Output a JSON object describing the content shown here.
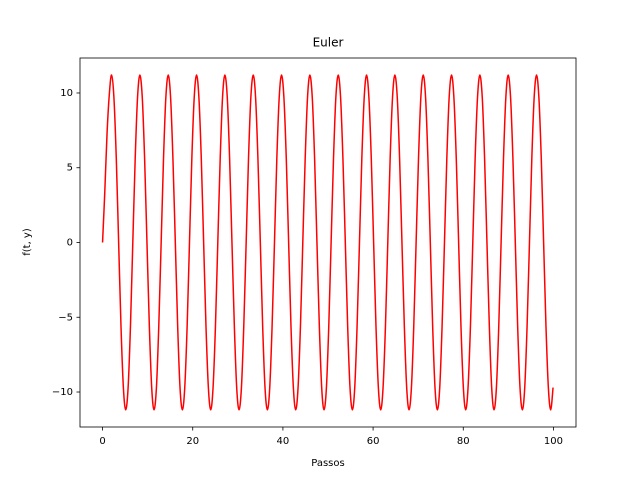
{
  "chart_data": {
    "type": "line",
    "title": "Euler",
    "x_label": "Passos",
    "y_label": "f(t, y)",
    "x": [
      0,
      0.5,
      1.0,
      1.5,
      2,
      2.52,
      3.05,
      3.57,
      4.09,
      4.62,
      5.14,
      5.67,
      6.19,
      6.71,
      7.24,
      7.76,
      8.28,
      8.81,
      9.33,
      9.85,
      10.38,
      10.9,
      11.42,
      11.95,
      12.47,
      13.0,
      13.52,
      14.04,
      14.57,
      15.09,
      15.61,
      16.14,
      16.66,
      17.18,
      17.71,
      18.23,
      18.76,
      19.28,
      19.8,
      20.33,
      20.85,
      21.37,
      21.9,
      22.42,
      22.94,
      23.47,
      23.99,
      24.51,
      25.04,
      25.56,
      26.09,
      26.61,
      27.13,
      27.66,
      28.18,
      28.7,
      29.23,
      29.75,
      30.27,
      30.8,
      31.32,
      31.85,
      32.37,
      32.89,
      33.42,
      33.94,
      34.46,
      34.99,
      35.51,
      36.03,
      36.56,
      37.08,
      37.6,
      38.13,
      38.65,
      39.18,
      39.7,
      40.22,
      40.75,
      41.27,
      41.79,
      42.32,
      42.84,
      43.36,
      43.89,
      44.41,
      44.94,
      45.46,
      45.98,
      46.51,
      47.03,
      47.55,
      48.08,
      48.6,
      49.12,
      49.65,
      50.17,
      50.69,
      51.22,
      51.74,
      52.27,
      52.79,
      53.31,
      53.84,
      54.36,
      54.88,
      55.41,
      55.93,
      56.45,
      56.98,
      57.5,
      58.03,
      58.55,
      59.07,
      59.6,
      60.12,
      60.64,
      61.17,
      61.69,
      62.21,
      62.74,
      63.26,
      63.78,
      64.31,
      64.83,
      65.36,
      65.88,
      66.4,
      66.93,
      67.45,
      67.97,
      68.5,
      69.02,
      69.54,
      70.07,
      70.59,
      71.12,
      71.64,
      72.16,
      72.69,
      73.21,
      73.73,
      74.26,
      74.78,
      75.3,
      75.83,
      76.35,
      76.87,
      77.4,
      77.92,
      78.45,
      78.97,
      79.49,
      80.02,
      80.54,
      81.06,
      81.59,
      82.11,
      82.63,
      83.16,
      83.68,
      84.21,
      84.73,
      85.25,
      85.78,
      86.3,
      86.82,
      87.35,
      87.87,
      88.39,
      88.92,
      89.44,
      89.96,
      90.49,
      91.01,
      91.54,
      92.06,
      92.58,
      93.11,
      93.63,
      94.15,
      94.68,
      95.2,
      95.72,
      96.25,
      96.77,
      97.3,
      97.82,
      98.34,
      98.87,
      99.39,
      99.91
    ],
    "series": [
      {
        "color": "#ff0000",
        "values": [
          0,
          3.4,
          7.3,
          9.9,
          11.2,
          9.7,
          5.6,
          0,
          -5.6,
          -9.7,
          -11.2,
          -9.7,
          -5.6,
          0,
          5.6,
          9.7,
          11.2,
          9.7,
          5.6,
          0,
          -5.6,
          -9.7,
          -11.2,
          -9.7,
          -5.6,
          0,
          5.6,
          9.7,
          11.2,
          9.7,
          5.6,
          0,
          -5.6,
          -9.7,
          -11.2,
          -9.7,
          -5.6,
          0,
          5.6,
          9.7,
          11.2,
          9.7,
          5.6,
          0,
          -5.6,
          -9.7,
          -11.2,
          -9.7,
          -5.6,
          0,
          5.6,
          9.7,
          11.2,
          9.7,
          5.6,
          0,
          -5.6,
          -9.7,
          -11.2,
          -9.7,
          -5.6,
          0,
          5.6,
          9.7,
          11.2,
          9.7,
          5.6,
          0,
          -5.6,
          -9.7,
          -11.2,
          -9.7,
          -5.6,
          0,
          5.6,
          9.7,
          11.2,
          9.7,
          5.6,
          0,
          -5.6,
          -9.7,
          -11.2,
          -9.7,
          -5.6,
          0,
          5.6,
          9.7,
          11.2,
          9.7,
          5.6,
          0,
          -5.6,
          -9.7,
          -11.2,
          -9.7,
          -5.6,
          0,
          5.6,
          9.7,
          11.2,
          9.7,
          5.6,
          0,
          -5.6,
          -9.7,
          -11.2,
          -9.7,
          -5.6,
          0,
          5.6,
          9.7,
          11.2,
          9.7,
          5.6,
          0,
          -5.6,
          -9.7,
          -11.2,
          -9.7,
          -5.6,
          0,
          5.6,
          9.7,
          11.2,
          9.7,
          5.6,
          0,
          -5.6,
          -9.7,
          -11.2,
          -9.7,
          -5.6,
          0,
          5.6,
          9.7,
          11.2,
          9.7,
          5.6,
          0,
          -5.6,
          -9.7,
          -11.2,
          -9.7,
          -5.6,
          0,
          5.6,
          9.7,
          11.2,
          9.7,
          5.6,
          0,
          -5.6,
          -9.7,
          -11.2,
          -9.7,
          -5.6,
          0,
          5.6,
          9.7,
          11.2,
          9.7,
          5.6,
          0,
          -5.6,
          -9.7,
          -11.2,
          -9.7,
          -5.6,
          0,
          5.6,
          9.7,
          11.2,
          9.7,
          5.6,
          0,
          -5.6,
          -9.7,
          -11.2,
          -9.7,
          -5.6,
          0,
          5.6,
          9.7,
          11.2,
          9.7,
          5.6,
          0,
          -5.6,
          -9.7,
          -11.2,
          -9.7
        ]
      }
    ],
    "xlim": [
      -5,
      105
    ],
    "xticks": [
      0,
      20,
      40,
      60,
      80,
      100
    ],
    "ylim": [
      -12.34,
      12.34
    ],
    "yticks": [
      {
        "value": -10,
        "label": "−10"
      },
      {
        "value": -5,
        "label": "−5"
      },
      0,
      5,
      10
    ],
    "grid": false
  }
}
